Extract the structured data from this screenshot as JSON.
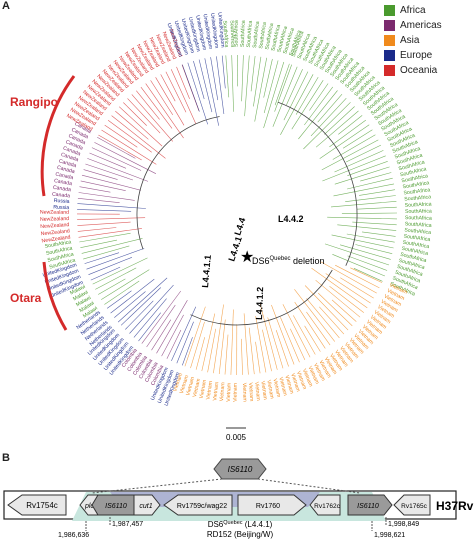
{
  "panels": {
    "a": "A",
    "b": "B"
  },
  "legend": [
    {
      "label": "Africa",
      "color": "#4a9a2e"
    },
    {
      "label": "Americas",
      "color": "#7b2a6e"
    },
    {
      "label": "Asia",
      "color": "#f08a1c"
    },
    {
      "label": "Europe",
      "color": "#1a2a8a"
    },
    {
      "label": "Oceania",
      "color": "#d42a2a"
    }
  ],
  "tree": {
    "clade_labels": {
      "rangipo": "Rangipo",
      "otara": "Otara",
      "l4_4": "L4.4",
      "l4_4_1": "L4.4.1",
      "l4_4_2": "L4.4.2",
      "l4_4_1_1": "L4.4.1.1",
      "l4_4_1_2": "L4.4.1.2",
      "deletion_prefix": "DS6",
      "deletion_sup": "Quebec",
      "deletion_suffix": " deletion"
    },
    "scale_bar": "0.005",
    "tip_names": {
      "africa": "SouthAfrica",
      "nz": "NewZealand",
      "canada": "Canada",
      "russia": "Russia",
      "vietnam": "Vietnam",
      "malaysia": "Malaysia",
      "uk": "UnitedKingdom",
      "netherlands": "Netherlands",
      "malawi": "Malawi",
      "colombia": "Colombia",
      "china": "China",
      "peru": "Peru"
    }
  },
  "locus": {
    "is6110_top": "IS6110",
    "genome": "H37Rv",
    "genes": {
      "rv1754c": "Rv1754c",
      "plcd": "plcD",
      "is6110_1": "IS6110",
      "cut1": "cut1",
      "rv1759c": "Rv1759c/wag22",
      "rv1760": "Rv1760",
      "rv1762c": "Rv1762c",
      "is6110_2": "IS6110",
      "rv1765c": "Rv1765c"
    },
    "coords": {
      "c1": "1,986,636",
      "c2": "1,987,457",
      "c3": "1,998,849",
      "c4": "1,998,621"
    },
    "ds6_prefix": "DS6",
    "ds6_sup": "Quebec",
    "ds6_suffix": " (L4.4.1)",
    "rd152": "RD152 (Beijing/W)"
  }
}
